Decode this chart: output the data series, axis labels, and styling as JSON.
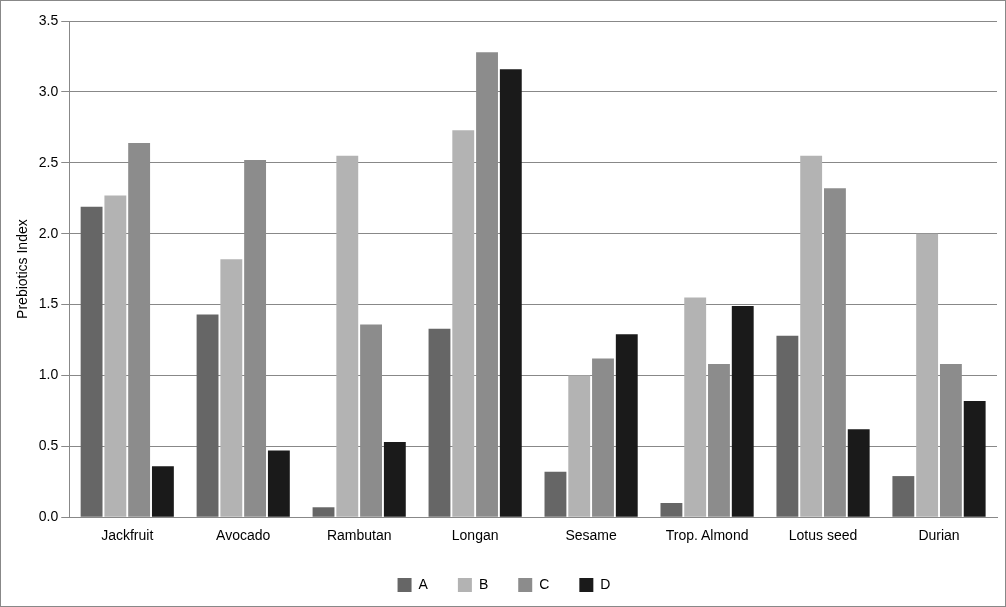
{
  "chart_data": {
    "type": "bar",
    "ylabel": "Prebiotics Index",
    "categories": [
      "Jackfruit",
      "Avocado",
      "Rambutan",
      "Longan",
      "Sesame",
      "Trop. Almond",
      "Lotus seed",
      "Durian"
    ],
    "series": [
      {
        "name": "A",
        "color": "#666666",
        "values": [
          2.19,
          1.43,
          0.07,
          1.33,
          0.32,
          0.1,
          1.28,
          0.29
        ]
      },
      {
        "name": "B",
        "color": "#b3b3b3",
        "values": [
          2.27,
          1.82,
          2.55,
          2.73,
          1.0,
          1.55,
          2.55,
          2.0
        ]
      },
      {
        "name": "C",
        "color": "#8c8c8c",
        "values": [
          2.64,
          2.52,
          1.36,
          3.28,
          1.12,
          1.08,
          2.32,
          1.08
        ]
      },
      {
        "name": "D",
        "color": "#1a1a1a",
        "values": [
          0.36,
          0.47,
          0.53,
          3.16,
          1.29,
          1.49,
          0.62,
          0.82
        ]
      }
    ],
    "ylim": [
      0,
      3.5
    ],
    "yticks": [
      {
        "value": 0,
        "label": "0.0"
      },
      {
        "value": 0.5,
        "label": "0.5"
      },
      {
        "value": 1,
        "label": "1.0"
      },
      {
        "value": 1.5,
        "label": "1.5"
      },
      {
        "value": 2,
        "label": "2.0"
      },
      {
        "value": 2.5,
        "label": "2.5"
      },
      {
        "value": 3,
        "label": "3.0"
      },
      {
        "value": 3.5,
        "label": "3.5"
      }
    ],
    "grid": "y",
    "legend": "bottom"
  }
}
